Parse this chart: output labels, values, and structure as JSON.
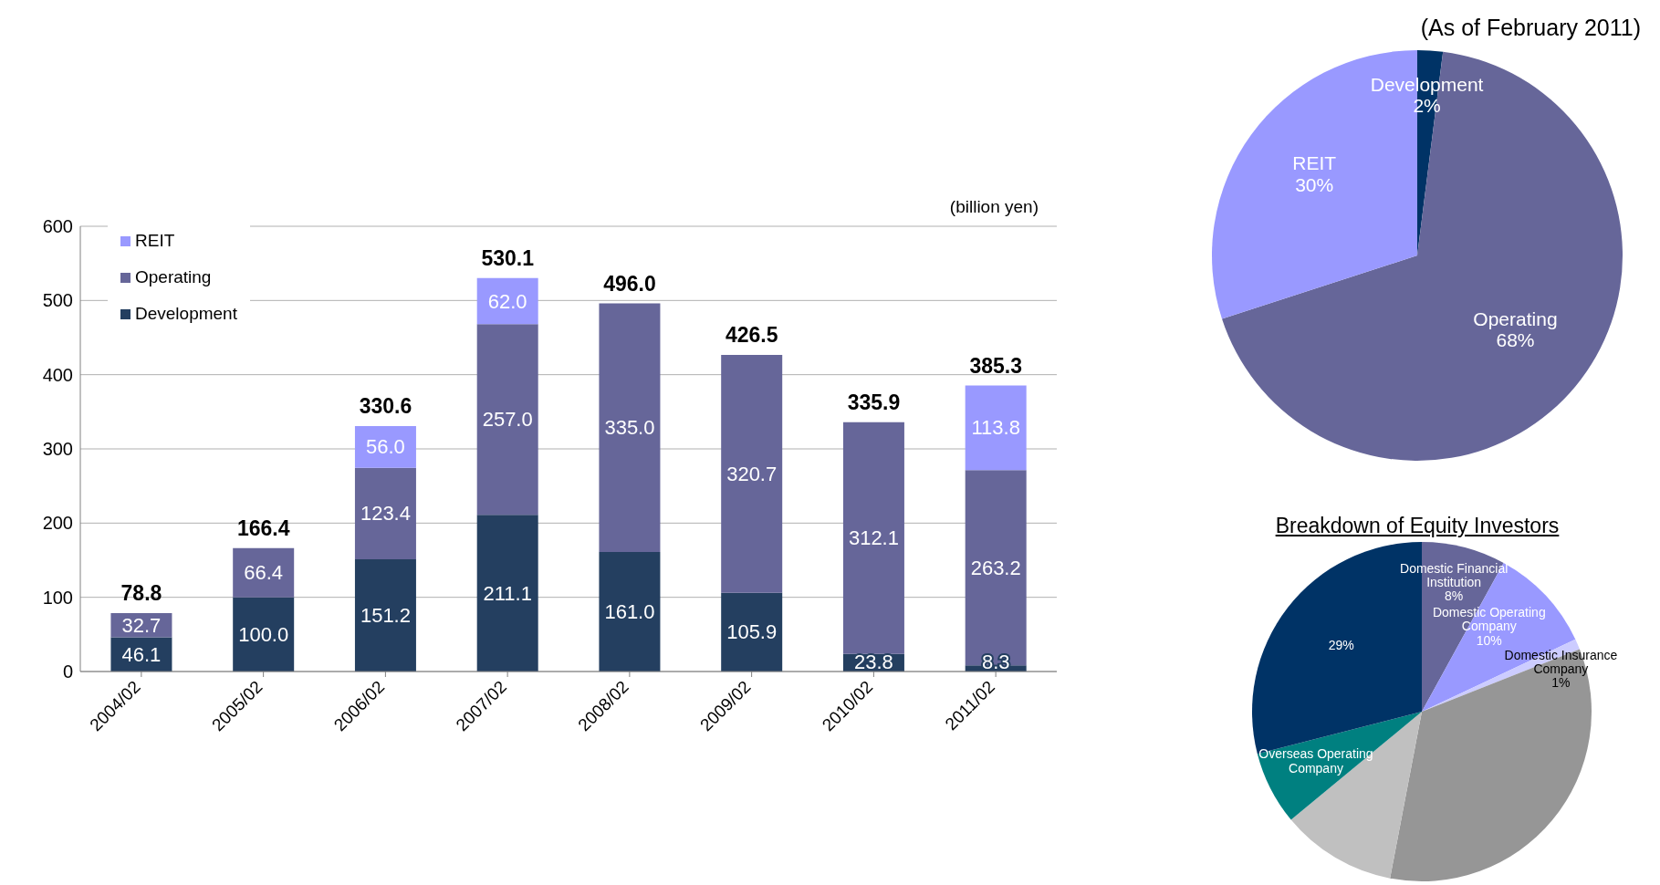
{
  "chart_data": [
    {
      "type": "bar",
      "ylabel": "(billion yen)",
      "categories": [
        "2004/02",
        "2005/02",
        "2006/02",
        "2007/02",
        "2008/02",
        "2009/02",
        "2010/02",
        "2011/02"
      ],
      "stacked": true,
      "series": [
        {
          "name": "Development",
          "color": "#243f60",
          "values": [
            46.1,
            100.0,
            151.2,
            211.1,
            161.0,
            105.9,
            23.8,
            8.3
          ],
          "value_labels": [
            "46.1",
            "100.0",
            "151.2",
            "211.1",
            "161.0",
            "105.9",
            "23.8",
            "8.3"
          ]
        },
        {
          "name": "Operating",
          "color": "#666699",
          "values": [
            32.7,
            66.4,
            123.4,
            257.0,
            335.0,
            320.7,
            312.1,
            263.2
          ],
          "value_labels": [
            "32.7",
            "66.4",
            "123.4",
            "257.0",
            "335.0",
            "320.7",
            "312.1",
            "263.2"
          ]
        },
        {
          "name": "REIT",
          "color": "#9999ff",
          "values": [
            null,
            null,
            56.0,
            62.0,
            null,
            null,
            null,
            113.8
          ],
          "value_labels": [
            null,
            null,
            "56.0",
            "62.0",
            null,
            null,
            null,
            "113.8"
          ]
        }
      ],
      "totals": [
        "78.8",
        "166.4",
        "330.6",
        "530.1",
        "496.0",
        "426.5",
        "335.9",
        "385.3"
      ],
      "ylim": [
        0,
        600
      ],
      "yticks": [
        0,
        100,
        200,
        300,
        400,
        500,
        600
      ],
      "grid": "y",
      "legend": "top left"
    },
    {
      "type": "pie",
      "title": "(As of February 2011)",
      "categories": [
        "Development",
        "Operating",
        "REIT"
      ],
      "values": [
        2,
        68,
        30
      ],
      "colors": [
        "#003366",
        "#666699",
        "#9999ff"
      ],
      "value_labels": [
        "2%",
        "68%",
        "30%"
      ]
    },
    {
      "type": "pie",
      "title": "Breakdown of Equity Investors",
      "categories": [
        "Domestic Financial Institution",
        "Domestic Operating Company",
        "Domestic Insurance Company",
        null,
        null,
        "Overseas Operating Company",
        null
      ],
      "values": [
        8,
        10,
        1,
        34,
        11,
        7,
        29
      ],
      "colors": [
        "#666699",
        "#9999ff",
        "#ccccff",
        "#969696",
        "#c0c0c0",
        "#008080",
        "#003366"
      ],
      "value_labels": [
        "8%",
        "10%",
        "1%",
        null,
        null,
        null,
        "29%"
      ]
    }
  ]
}
